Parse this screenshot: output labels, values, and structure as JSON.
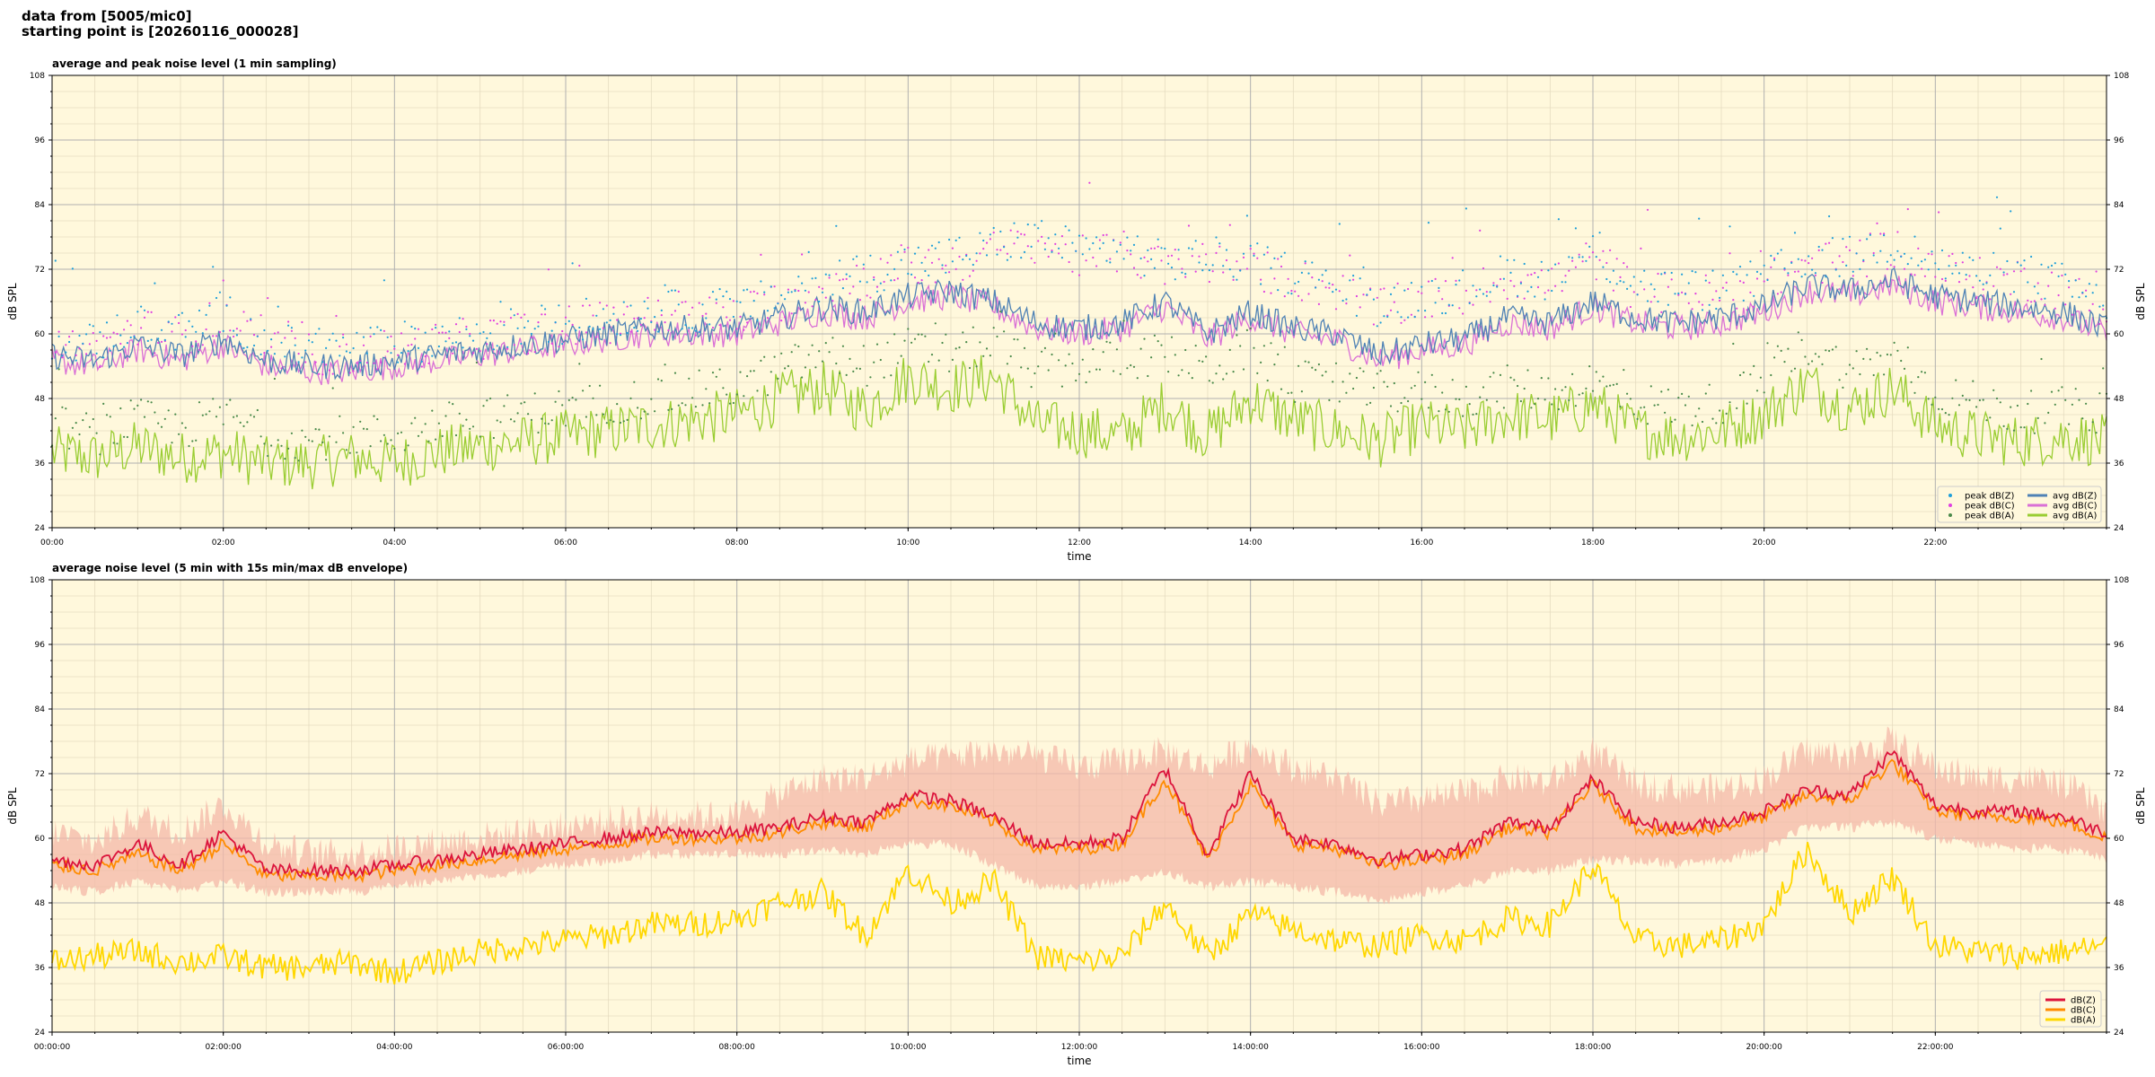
{
  "header": {
    "line1": "data from [5005/mic0]",
    "line2": "starting point is [20260116_000028]"
  },
  "colors": {
    "plot_bg": "#fff8dc",
    "grid_major": "#b0b0b0",
    "grid_minor": "#e6dcc0",
    "peak_z": "#1f9fd9",
    "peak_c": "#e040e0",
    "peak_a": "#4a8a4a",
    "avg_z": "#4f82b5",
    "avg_c": "#da70d6",
    "avg_a": "#9acd32",
    "five_z": "#dc143c",
    "five_c": "#ff8c00",
    "five_a": "#ffd700",
    "envelope": "#f4b8a8"
  },
  "chart_data": [
    {
      "type": "line",
      "title": "average and peak noise level (1 min sampling)",
      "xlabel": "time",
      "ylabel": "dB SPL",
      "ylim": [
        24,
        108
      ],
      "xlim": [
        0,
        24
      ],
      "x_unit": "hours",
      "yticks": [
        24,
        36,
        48,
        60,
        72,
        84,
        96,
        108
      ],
      "xtick_labels": [
        "00:00",
        "02:00",
        "04:00",
        "06:00",
        "08:00",
        "10:00",
        "12:00",
        "14:00",
        "16:00",
        "18:00",
        "20:00",
        "22:00"
      ],
      "grid": true,
      "legend_position": "bottom-right",
      "x": [
        0,
        0.5,
        1,
        1.5,
        2,
        2.5,
        3,
        3.5,
        4,
        4.5,
        5,
        5.5,
        6,
        6.5,
        7,
        7.5,
        8,
        8.5,
        9,
        9.5,
        10,
        10.5,
        11,
        11.5,
        12,
        12.5,
        13,
        13.5,
        14,
        14.5,
        15,
        15.5,
        16,
        16.5,
        17,
        17.5,
        18,
        18.5,
        19,
        19.5,
        20,
        20.5,
        21,
        21.5,
        22,
        22.5,
        23,
        23.5,
        24
      ],
      "series": [
        {
          "name": "peak dB(Z)",
          "kind": "points",
          "values": [
            58,
            57,
            61,
            59,
            63,
            57,
            56,
            56,
            57,
            58,
            59,
            60,
            61,
            62,
            63,
            63,
            63,
            66,
            69,
            70,
            72,
            73,
            75,
            77,
            74,
            75,
            72,
            73,
            72,
            70,
            68,
            64,
            66,
            67,
            70,
            69,
            74,
            68,
            67,
            67,
            69,
            73,
            73,
            76,
            72,
            70,
            70,
            68,
            64
          ]
        },
        {
          "name": "peak dB(C)",
          "kind": "points",
          "values": [
            57,
            56,
            60,
            58,
            62,
            56,
            55,
            55,
            56,
            57,
            58,
            59,
            60,
            61,
            62,
            62,
            62,
            65,
            68,
            69,
            71,
            72,
            74,
            76,
            73,
            74,
            71,
            72,
            71,
            69,
            67,
            63,
            65,
            66,
            69,
            68,
            73,
            67,
            66,
            66,
            68,
            72,
            72,
            75,
            71,
            69,
            69,
            67,
            63
          ]
        },
        {
          "name": "peak dB(A)",
          "kind": "points",
          "values": [
            42,
            40,
            43,
            41,
            44,
            40,
            39,
            40,
            40,
            42,
            43,
            44,
            45,
            46,
            47,
            48,
            49,
            52,
            55,
            53,
            56,
            55,
            57,
            52,
            53,
            54,
            55,
            52,
            56,
            50,
            49,
            48,
            48,
            47,
            49,
            48,
            50,
            46,
            45,
            46,
            50,
            57,
            52,
            55,
            48,
            46,
            44,
            45,
            44
          ]
        },
        {
          "name": "avg dB(Z)",
          "kind": "line",
          "values": [
            56,
            55,
            58,
            56,
            59,
            55,
            54,
            54,
            55,
            56,
            57,
            58,
            59,
            60,
            61,
            61,
            61,
            63,
            65,
            64,
            67,
            68,
            66,
            62,
            61,
            62,
            66,
            60,
            64,
            61,
            60,
            56,
            58,
            59,
            63,
            62,
            66,
            63,
            62,
            63,
            65,
            69,
            68,
            70,
            67,
            66,
            65,
            64,
            61
          ]
        },
        {
          "name": "avg dB(C)",
          "kind": "line",
          "values": [
            55,
            54,
            57,
            55,
            58,
            54,
            53,
            53,
            54,
            55,
            56,
            57,
            58,
            59,
            60,
            60,
            60,
            62,
            64,
            63,
            66,
            67,
            65,
            61,
            60,
            61,
            65,
            59,
            63,
            60,
            59,
            55,
            57,
            58,
            62,
            61,
            65,
            62,
            61,
            62,
            64,
            68,
            67,
            69,
            66,
            65,
            64,
            63,
            60
          ]
        },
        {
          "name": "avg dB(A)",
          "kind": "line",
          "values": [
            38,
            37,
            39,
            37,
            38,
            36,
            36,
            37,
            36,
            38,
            39,
            40,
            41,
            42,
            43,
            44,
            45,
            48,
            50,
            46,
            52,
            50,
            52,
            43,
            42,
            41,
            47,
            41,
            48,
            44,
            42,
            40,
            43,
            42,
            45,
            44,
            47,
            42,
            41,
            42,
            45,
            51,
            46,
            50,
            43,
            41,
            40,
            41,
            40
          ]
        }
      ]
    },
    {
      "type": "line",
      "title": "average noise level (5 min with 15s min/max dB envelope)",
      "xlabel": "time",
      "ylabel": "dB SPL",
      "ylim": [
        24,
        108
      ],
      "xlim": [
        0,
        24
      ],
      "x_unit": "hours",
      "yticks": [
        24,
        36,
        48,
        60,
        72,
        84,
        96,
        108
      ],
      "xtick_labels": [
        "00:00:00",
        "02:00:00",
        "04:00:00",
        "06:00:00",
        "08:00:00",
        "10:00:00",
        "12:00:00",
        "14:00:00",
        "16:00:00",
        "18:00:00",
        "20:00:00",
        "22:00:00"
      ],
      "grid": true,
      "legend_position": "bottom-right",
      "x": [
        0,
        0.5,
        1,
        1.5,
        2,
        2.5,
        3,
        3.5,
        4,
        4.5,
        5,
        5.5,
        6,
        6.5,
        7,
        7.5,
        8,
        8.5,
        9,
        9.5,
        10,
        10.5,
        11,
        11.5,
        12,
        12.5,
        13,
        13.5,
        14,
        14.5,
        15,
        15.5,
        16,
        16.5,
        17,
        17.5,
        18,
        18.5,
        19,
        19.5,
        20,
        20.5,
        21,
        21.5,
        22,
        22.5,
        23,
        23.5,
        24
      ],
      "envelope": {
        "upper": [
          60,
          58,
          63,
          60,
          65,
          58,
          56,
          56,
          57,
          58,
          59,
          60,
          61,
          62,
          63,
          63,
          63,
          67,
          70,
          70,
          73,
          74,
          75,
          74,
          72,
          73,
          75,
          72,
          76,
          72,
          70,
          65,
          66,
          67,
          70,
          69,
          75,
          69,
          68,
          68,
          70,
          75,
          74,
          77,
          72,
          70,
          70,
          69,
          64
        ],
        "lower": [
          52,
          51,
          53,
          51,
          53,
          51,
          51,
          51,
          52,
          53,
          54,
          55,
          56,
          57,
          58,
          58,
          58,
          58,
          59,
          58,
          60,
          60,
          56,
          52,
          52,
          53,
          55,
          52,
          53,
          52,
          51,
          49,
          51,
          52,
          55,
          55,
          57,
          57,
          56,
          57,
          59,
          63,
          63,
          64,
          61,
          60,
          59,
          59,
          57
        ]
      },
      "series": [
        {
          "name": "dB(Z)",
          "values": [
            56,
            55,
            59,
            55,
            61,
            54,
            54,
            54,
            55,
            56,
            57,
            58,
            59,
            60,
            61,
            61,
            61,
            62,
            64,
            63,
            68,
            67,
            64,
            59,
            59,
            60,
            73,
            57,
            72,
            60,
            59,
            56,
            57,
            58,
            63,
            62,
            71,
            63,
            62,
            63,
            65,
            69,
            68,
            76,
            66,
            65,
            65,
            64,
            61
          ]
        },
        {
          "name": "dB(C)",
          "values": [
            55,
            54,
            57,
            54,
            59,
            53,
            53,
            53,
            54,
            55,
            56,
            57,
            58,
            59,
            60,
            60,
            60,
            61,
            63,
            62,
            67,
            66,
            63,
            58,
            58,
            59,
            71,
            56,
            70,
            59,
            58,
            55,
            56,
            57,
            62,
            61,
            70,
            62,
            61,
            62,
            64,
            68,
            67,
            74,
            65,
            64,
            64,
            63,
            60
          ]
        },
        {
          "name": "dB(A)",
          "values": [
            37,
            38,
            39,
            37,
            38,
            36,
            36,
            37,
            35,
            37,
            39,
            40,
            41,
            42,
            44,
            44,
            45,
            48,
            50,
            42,
            54,
            48,
            52,
            38,
            37,
            38,
            48,
            38,
            46,
            43,
            41,
            40,
            42,
            41,
            45,
            44,
            55,
            41,
            40,
            41,
            44,
            58,
            46,
            53,
            40,
            39,
            38,
            39,
            40
          ]
        }
      ]
    }
  ]
}
